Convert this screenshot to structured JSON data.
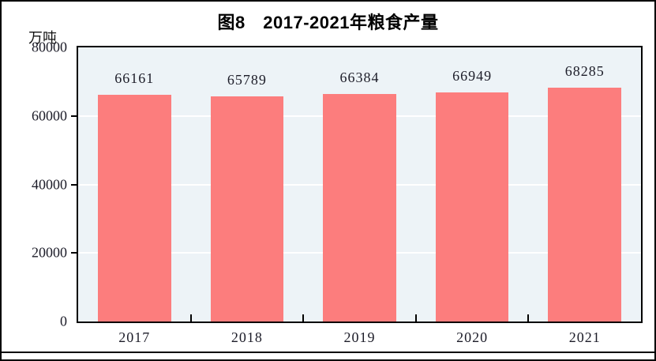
{
  "figure": {
    "title": "图8　2017-2021年粮食产量",
    "unit_label": "万吨"
  },
  "chart_data": {
    "type": "bar",
    "title": "图8　2017-2021年粮食产量",
    "ylabel": "万吨",
    "xlabel": "",
    "categories": [
      "2017",
      "2018",
      "2019",
      "2020",
      "2021"
    ],
    "values": [
      66161,
      65789,
      66384,
      66949,
      68285
    ],
    "value_labels": [
      "66161",
      "65789",
      "66384",
      "66949",
      "68285"
    ],
    "ylim": [
      0,
      80000
    ],
    "yticks": [
      0,
      20000,
      40000,
      60000,
      80000
    ],
    "grid": true,
    "legend": false,
    "colors": {
      "bar": "#FC7D7D",
      "plot_background": "#EDF3F7",
      "gridline": "#FFFFFF",
      "frame": "#000000",
      "text": "#1C1C28"
    }
  }
}
